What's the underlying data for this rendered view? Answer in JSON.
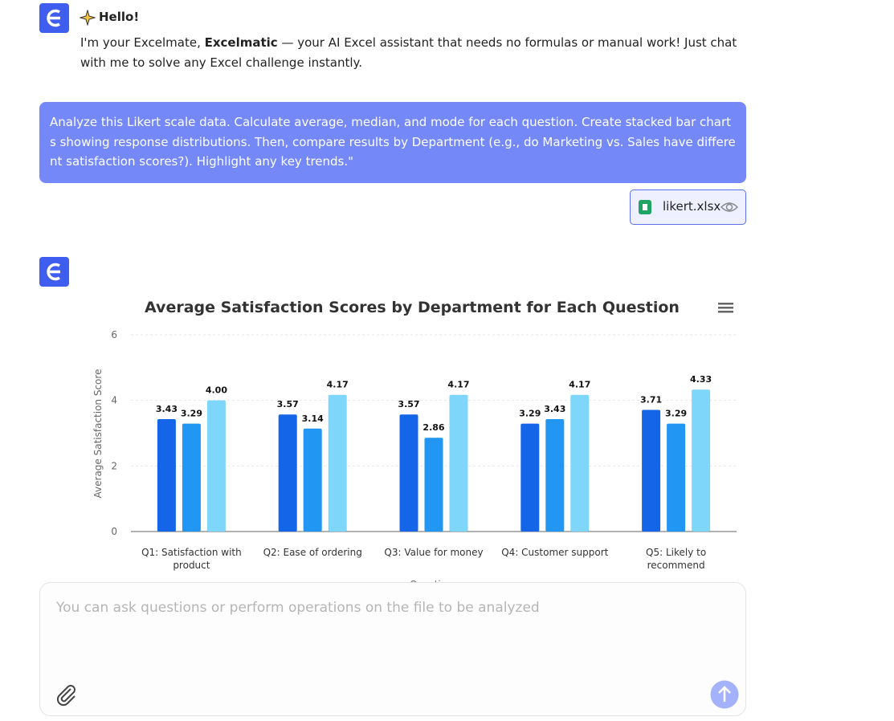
{
  "greeting": {
    "title": "Hello!",
    "text_before": "I'm your Excelmate, ",
    "bold": "Excelmatic",
    "text_after": " — your AI Excel assistant that needs no formulas or manual work! Just chat with me to solve any Excel challenge instantly."
  },
  "user_message": {
    "text": "Analyze this Likert scale data. Calculate average, median, and mode for each question. Create stacked bar charts showing response distributions. Then, compare results by Department (e.g., do Marketing vs. Sales have different satisfaction scores?). Highlight any key trends.\"",
    "file": "likert.xlsx"
  },
  "chart_data": {
    "type": "bar",
    "title": "Average Satisfaction Scores by Department for Each Question",
    "x_label": "Questions",
    "y_label": "Average Satisfaction Score",
    "categories": [
      "Q1: Satisfaction with product",
      "Q2: Ease of ordering",
      "Q3: Value for money",
      "Q4: Customer support",
      "Q5: Likely to recommend"
    ],
    "series": [
      {
        "color": "#1565e8",
        "values": [
          3.43,
          3.57,
          3.57,
          3.29,
          3.71
        ],
        "value_labels": [
          "3.43",
          "3.57",
          "3.57",
          "3.29",
          "3.71"
        ]
      },
      {
        "color": "#2196f3",
        "values": [
          3.29,
          3.14,
          2.86,
          3.43,
          3.29
        ],
        "value_labels": [
          "3.29",
          "3.14",
          "2.86",
          "3.43",
          "3.29"
        ]
      },
      {
        "color": "#7fd6fb",
        "values": [
          4.0,
          4.17,
          4.17,
          4.17,
          4.33
        ],
        "value_labels": [
          "4.00",
          "4.17",
          "4.17",
          "4.17",
          "4.33"
        ]
      }
    ],
    "ylim": [
      0,
      6
    ],
    "yticks": [
      0,
      2,
      4,
      6
    ],
    "grid": true
  },
  "input": {
    "placeholder": "You can ask questions or perform operations on the file to be analyzed"
  }
}
